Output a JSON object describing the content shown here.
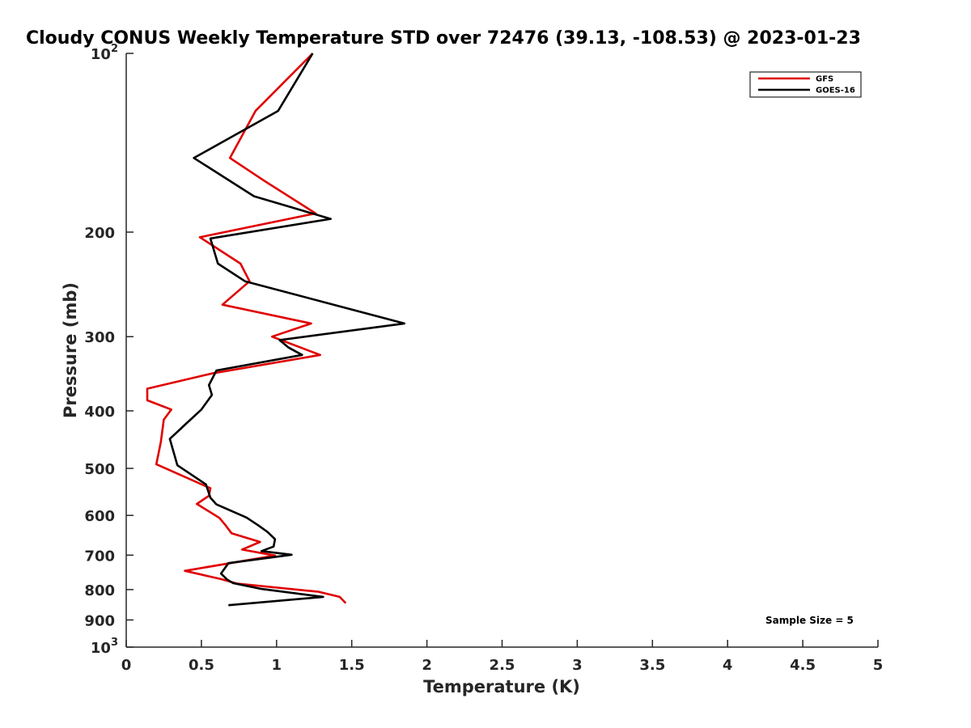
{
  "chart_data": {
    "type": "line",
    "title": "Cloudy CONUS Weekly Temperature STD over 72476 (39.13, -108.53) @ 2023-01-23",
    "xlabel": "Temperature (K)",
    "ylabel": "Pressure (mb)",
    "xlim": [
      0,
      5
    ],
    "ylim": [
      100,
      1000
    ],
    "y_scale": "log",
    "y_reversed": true,
    "grid": false,
    "legend_position": "top-right",
    "x_ticks": [
      {
        "value": 0,
        "label": "0"
      },
      {
        "value": 0.5,
        "label": "0.5"
      },
      {
        "value": 1,
        "label": "1"
      },
      {
        "value": 1.5,
        "label": "1.5"
      },
      {
        "value": 2,
        "label": "2"
      },
      {
        "value": 2.5,
        "label": "2.5"
      },
      {
        "value": 3,
        "label": "3"
      },
      {
        "value": 3.5,
        "label": "3.5"
      },
      {
        "value": 4,
        "label": "4"
      },
      {
        "value": 4.5,
        "label": "4.5"
      },
      {
        "value": 5,
        "label": "5"
      }
    ],
    "y_ticks": [
      {
        "value": 100,
        "base": "10",
        "exp": "2"
      },
      {
        "value": 200,
        "label": "200"
      },
      {
        "value": 300,
        "label": "300"
      },
      {
        "value": 400,
        "label": "400"
      },
      {
        "value": 500,
        "label": "500"
      },
      {
        "value": 600,
        "label": "600"
      },
      {
        "value": 700,
        "label": "700"
      },
      {
        "value": 800,
        "label": "800"
      },
      {
        "value": 900,
        "label": "900"
      },
      {
        "value": 1000,
        "base": "10",
        "exp": "3"
      }
    ],
    "series": [
      {
        "name": "GFS",
        "color": "#e00000",
        "points": [
          [
            1.24,
            100
          ],
          [
            0.86,
            125
          ],
          [
            0.69,
            150
          ],
          [
            0.92,
            164
          ],
          [
            1.26,
            186
          ],
          [
            0.49,
            204
          ],
          [
            0.76,
            226
          ],
          [
            0.82,
            242
          ],
          [
            0.64,
            265
          ],
          [
            1.23,
            285
          ],
          [
            0.97,
            300
          ],
          [
            1.29,
            322
          ],
          [
            0.57,
            346
          ],
          [
            0.14,
            367
          ],
          [
            0.14,
            384
          ],
          [
            0.3,
            398
          ],
          [
            0.25,
            414
          ],
          [
            0.23,
            452
          ],
          [
            0.2,
            492
          ],
          [
            0.56,
            540
          ],
          [
            0.55,
            556
          ],
          [
            0.47,
            574
          ],
          [
            0.62,
            606
          ],
          [
            0.66,
            623
          ],
          [
            0.7,
            643
          ],
          [
            0.89,
            665
          ],
          [
            0.77,
            685
          ],
          [
            0.99,
            701
          ],
          [
            0.39,
            744
          ],
          [
            0.63,
            768
          ],
          [
            0.74,
            782
          ],
          [
            1.28,
            807
          ],
          [
            1.42,
            823
          ],
          [
            1.46,
            843
          ]
        ]
      },
      {
        "name": "GOES-16",
        "color": "#000000",
        "points": [
          [
            1.24,
            100
          ],
          [
            1.01,
            125
          ],
          [
            0.45,
            150
          ],
          [
            0.85,
            174
          ],
          [
            1.36,
            190
          ],
          [
            0.56,
            205
          ],
          [
            0.61,
            226
          ],
          [
            0.79,
            242
          ],
          [
            1.85,
            285
          ],
          [
            1.02,
            304
          ],
          [
            1.08,
            313
          ],
          [
            1.17,
            322
          ],
          [
            0.6,
            342
          ],
          [
            0.55,
            362
          ],
          [
            0.57,
            376
          ],
          [
            0.5,
            398
          ],
          [
            0.4,
            420
          ],
          [
            0.29,
            446
          ],
          [
            0.34,
            494
          ],
          [
            0.53,
            532
          ],
          [
            0.56,
            560
          ],
          [
            0.6,
            575
          ],
          [
            0.8,
            605
          ],
          [
            0.88,
            624
          ],
          [
            0.94,
            640
          ],
          [
            0.99,
            658
          ],
          [
            0.98,
            677
          ],
          [
            0.9,
            689
          ],
          [
            1.1,
            699
          ],
          [
            0.68,
            722
          ],
          [
            0.63,
            752
          ],
          [
            0.67,
            769
          ],
          [
            0.71,
            780
          ],
          [
            0.9,
            798
          ],
          [
            1.31,
            823
          ],
          [
            0.68,
            850
          ]
        ]
      }
    ],
    "annotation": "Sample Size = 5"
  }
}
